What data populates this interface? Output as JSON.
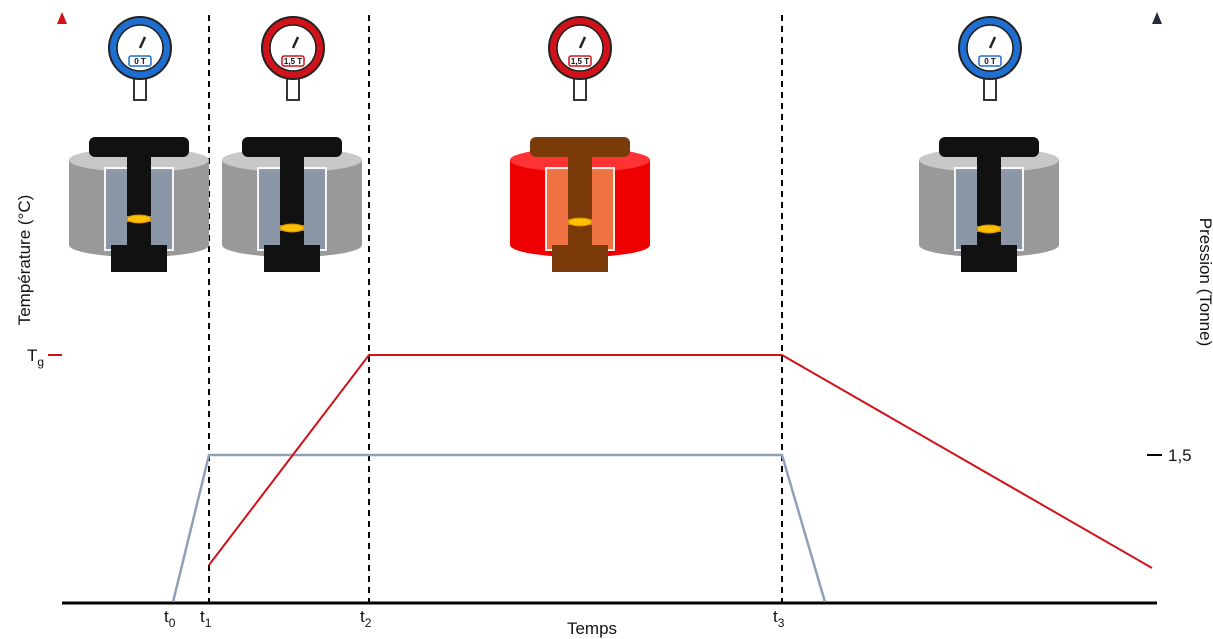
{
  "axes": {
    "left_label": "Température (°C)",
    "right_label": "Pression (Tonne)",
    "x_label": "Temps",
    "left_tick": {
      "text": "T",
      "sub": "g"
    },
    "right_tick": "1,5"
  },
  "times": [
    {
      "text": "t",
      "sub": "0"
    },
    {
      "text": "t",
      "sub": "1"
    },
    {
      "text": "t",
      "sub": "2"
    },
    {
      "text": "t",
      "sub": "3"
    }
  ],
  "gauges": [
    "0 T",
    "1,5 T",
    "1,5 T",
    "0 T"
  ]
}
